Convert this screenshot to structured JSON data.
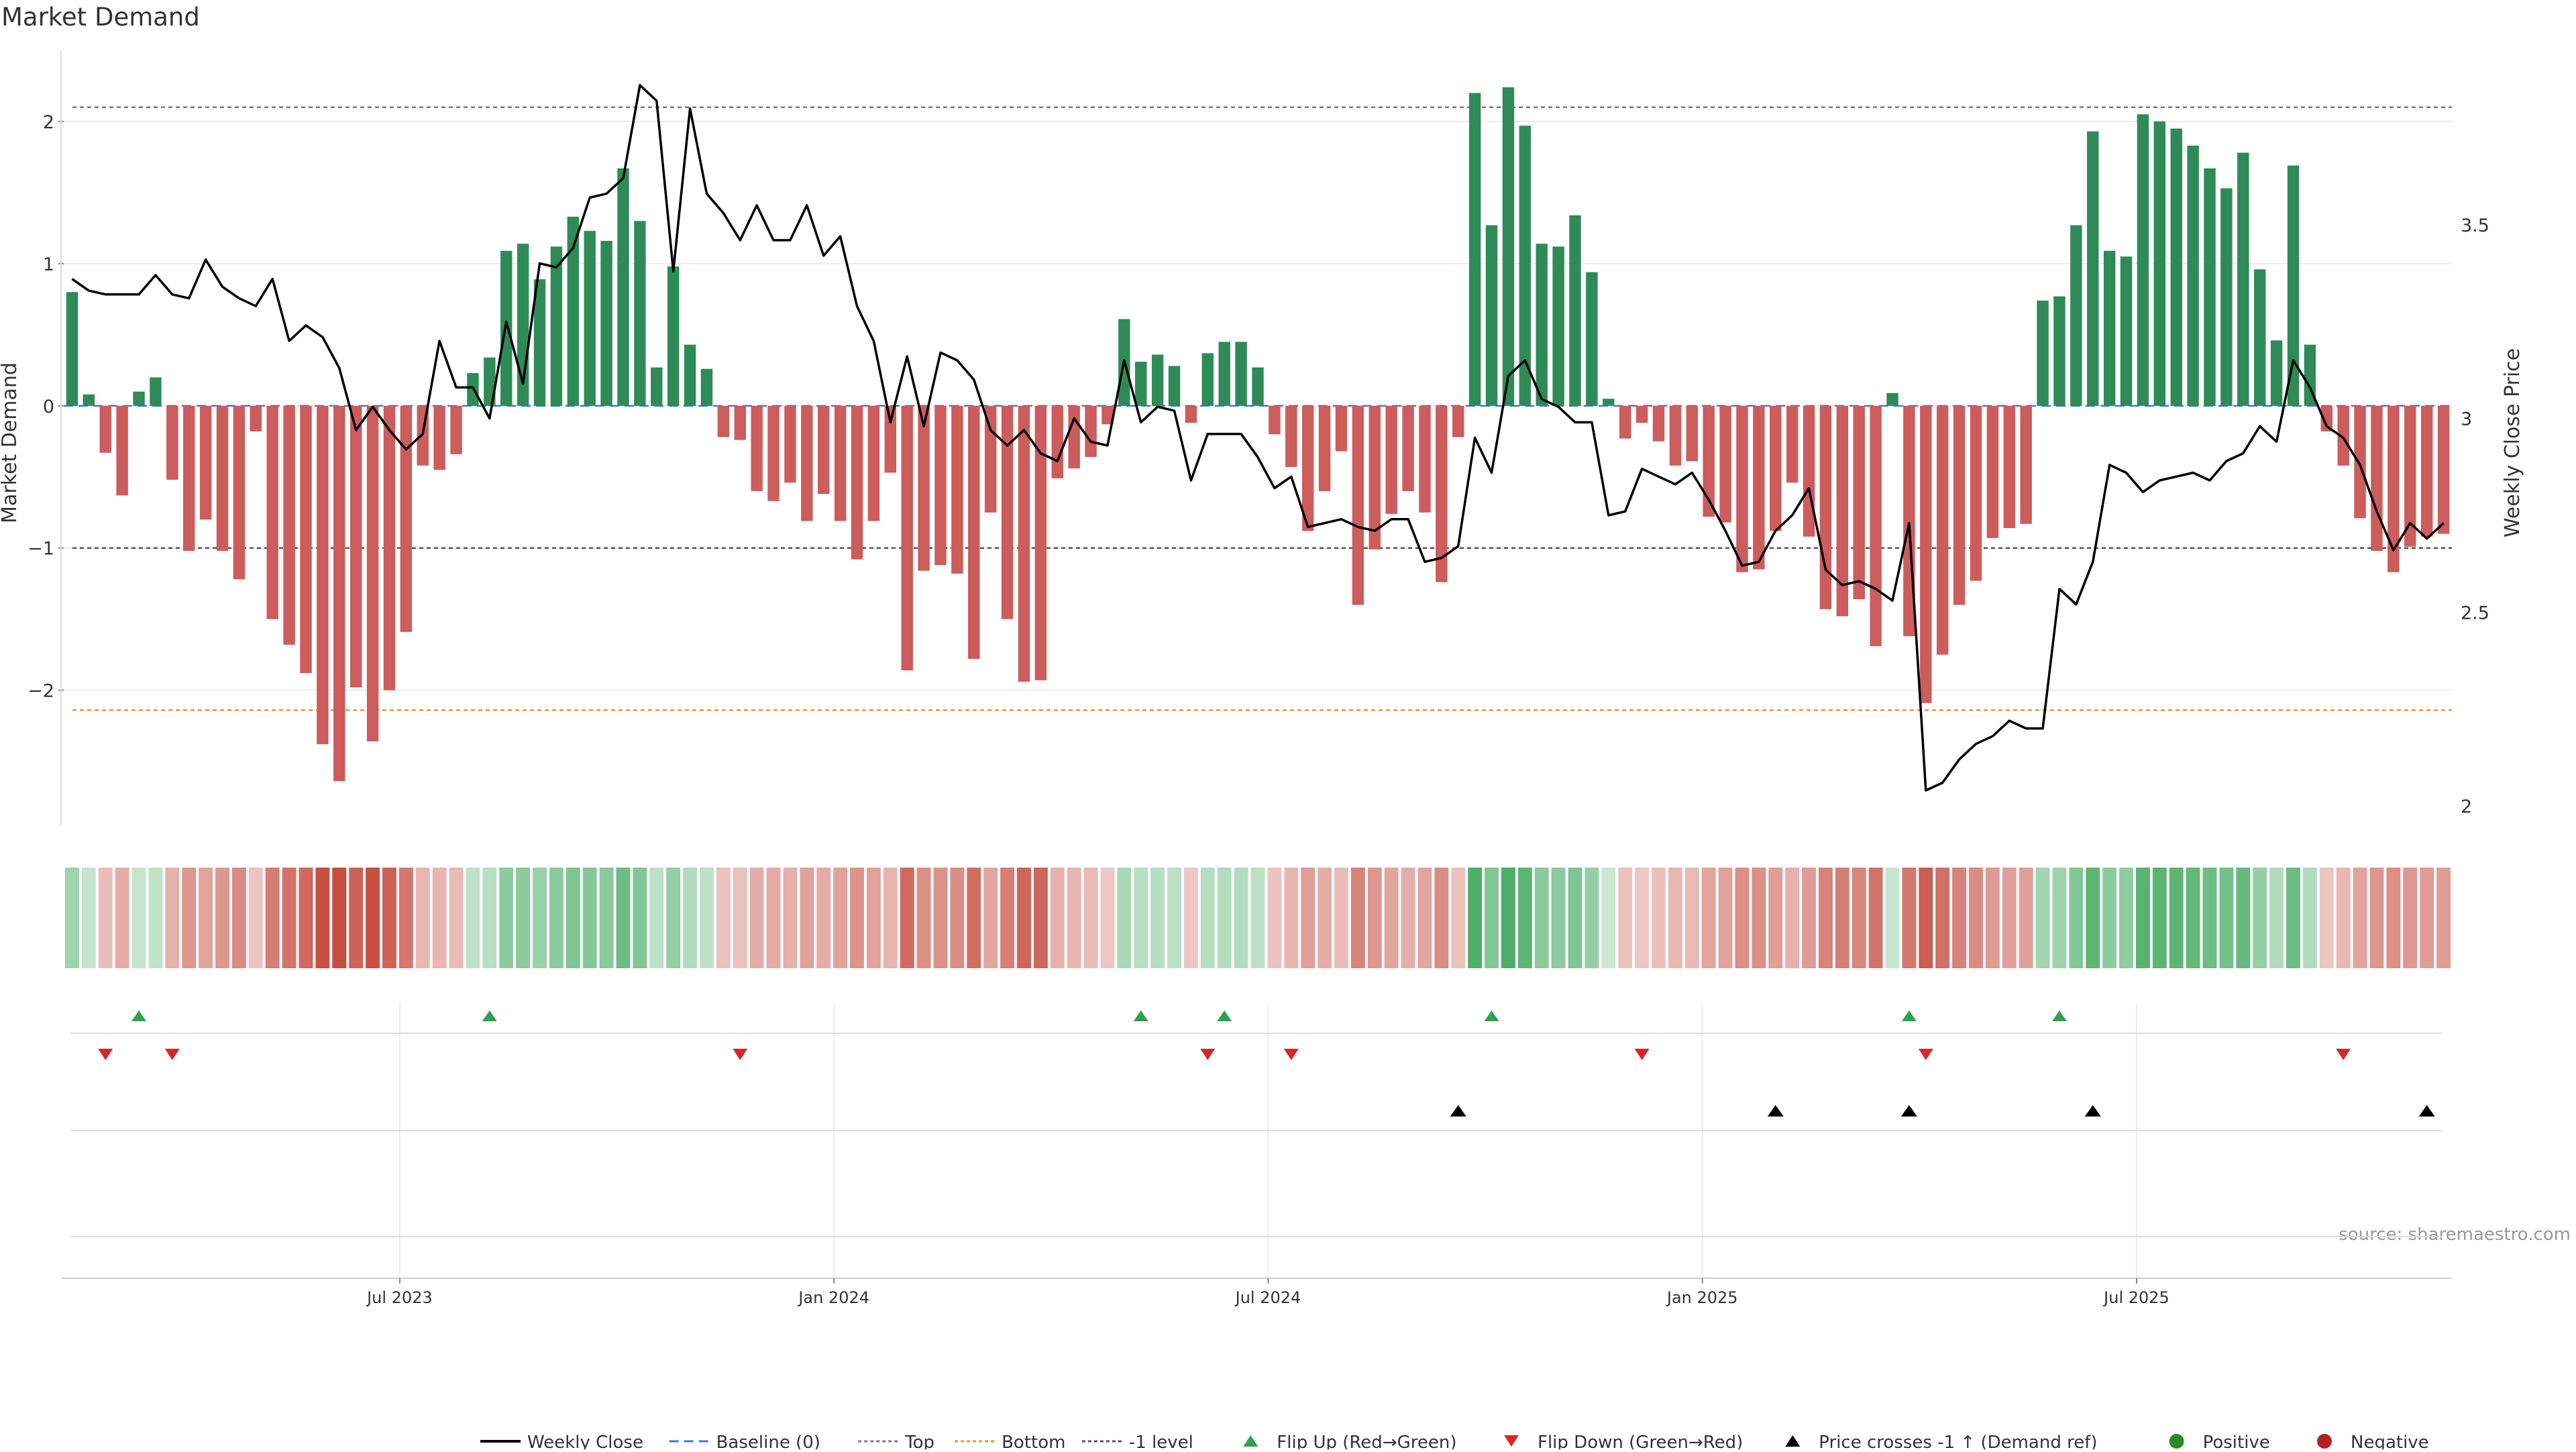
{
  "chart_data": {
    "type": "bar",
    "title": "Market Demand",
    "ylabel": "Market Demand",
    "y2label": "Weekly Close Price",
    "source": "source: sharemaestro.com",
    "ylim": [
      -2.95,
      2.5
    ],
    "y2lim": [
      1.95,
      3.95
    ],
    "yticks": [
      {
        "v": 2,
        "label": "2"
      },
      {
        "v": 1,
        "label": "1"
      },
      {
        "v": 0,
        "label": "0"
      },
      {
        "v": -1,
        "label": "−1"
      },
      {
        "v": -2,
        "label": "−2"
      }
    ],
    "y2ticks": [
      {
        "v": 3.5,
        "label": "3.5"
      },
      {
        "v": 3,
        "label": "3"
      },
      {
        "v": 2.5,
        "label": "2.5"
      },
      {
        "v": 2,
        "label": "2"
      }
    ],
    "xticks": [
      {
        "label": "Jul 2023",
        "week": 20
      },
      {
        "label": "Jan 2024",
        "week": 46
      },
      {
        "label": "Jul 2024",
        "week": 72
      },
      {
        "label": "Jan 2025",
        "week": 98
      },
      {
        "label": "Jul 2025",
        "week": 124
      }
    ],
    "grid": true,
    "legend_position": "bottom",
    "reference_lines": {
      "top": 2.1,
      "bottom": -2.14,
      "minus_one": -1.0,
      "baseline": 0
    },
    "demand": [
      0.8,
      0.08,
      -0.33,
      -0.63,
      0.1,
      0.2,
      -0.52,
      -1.02,
      -0.8,
      -1.02,
      -1.22,
      -0.18,
      -1.5,
      -1.68,
      -1.88,
      -2.38,
      -2.64,
      -1.98,
      -2.36,
      -2.0,
      -1.59,
      -0.42,
      -0.45,
      -0.34,
      0.23,
      0.34,
      1.09,
      1.14,
      0.89,
      1.12,
      1.33,
      1.23,
      1.16,
      1.67,
      1.3,
      0.27,
      0.98,
      0.43,
      0.26,
      -0.22,
      -0.24,
      -0.6,
      -0.67,
      -0.54,
      -0.81,
      -0.62,
      -0.81,
      -1.08,
      -0.81,
      -0.47,
      -1.86,
      -1.16,
      -1.12,
      -1.18,
      -1.78,
      -0.75,
      -1.5,
      -1.94,
      -1.93,
      -0.51,
      -0.44,
      -0.36,
      -0.13,
      0.61,
      0.31,
      0.36,
      0.28,
      -0.12,
      0.37,
      0.45,
      0.45,
      0.27,
      -0.2,
      -0.43,
      -0.88,
      -0.6,
      -0.32,
      -1.4,
      -1.01,
      -0.76,
      -0.6,
      -0.75,
      -1.24,
      -0.22,
      2.2,
      1.27,
      2.24,
      1.97,
      1.14,
      1.12,
      1.34,
      0.94,
      0.05,
      -0.23,
      -0.12,
      -0.25,
      -0.42,
      -0.39,
      -0.78,
      -0.82,
      -1.17,
      -1.15,
      -0.88,
      -0.54,
      -0.92,
      -1.43,
      -1.48,
      -1.36,
      -1.69,
      0.09,
      -1.62,
      -2.09,
      -1.75,
      -1.4,
      -1.23,
      -0.93,
      -0.86,
      -0.83,
      0.74,
      0.77,
      1.27,
      1.93,
      1.09,
      1.05,
      2.05,
      2.0,
      1.95,
      1.83,
      1.67,
      1.53,
      1.78,
      0.96,
      0.46,
      1.69,
      0.43,
      -0.18,
      -0.42,
      -0.79,
      -1.02,
      -1.17,
      -0.99,
      -0.92,
      -0.9
    ],
    "weekly_close": [
      3.36,
      3.33,
      3.32,
      3.32,
      3.32,
      3.37,
      3.32,
      3.31,
      3.41,
      3.34,
      3.31,
      3.29,
      3.36,
      3.2,
      3.24,
      3.21,
      3.13,
      2.97,
      3.03,
      2.97,
      2.92,
      2.96,
      3.2,
      3.08,
      3.08,
      3.0,
      3.25,
      3.09,
      3.4,
      3.39,
      3.44,
      3.57,
      3.58,
      3.62,
      3.86,
      3.82,
      3.38,
      3.8,
      3.58,
      3.53,
      3.46,
      3.55,
      3.46,
      3.46,
      3.55,
      3.42,
      3.47,
      3.29,
      3.2,
      2.99,
      3.16,
      2.98,
      3.17,
      3.15,
      3.1,
      2.97,
      2.93,
      2.97,
      2.91,
      2.89,
      3.0,
      2.94,
      2.93,
      3.15,
      2.99,
      3.03,
      3.02,
      2.84,
      2.96,
      2.96,
      2.96,
      2.9,
      2.82,
      2.85,
      2.72,
      2.73,
      2.74,
      2.72,
      2.71,
      2.74,
      2.74,
      2.63,
      2.64,
      2.67,
      2.95,
      2.86,
      3.11,
      3.15,
      3.05,
      3.03,
      2.99,
      2.99,
      2.75,
      2.76,
      2.87,
      2.85,
      2.83,
      2.86,
      2.79,
      2.71,
      2.62,
      2.63,
      2.71,
      2.75,
      2.82,
      2.61,
      2.57,
      2.58,
      2.56,
      2.53,
      2.73,
      2.04,
      2.06,
      2.12,
      2.16,
      2.18,
      2.22,
      2.2,
      2.2,
      2.56,
      2.52,
      2.63,
      2.88,
      2.86,
      2.81,
      2.84,
      2.85,
      2.86,
      2.84,
      2.89,
      2.91,
      2.98,
      2.94,
      3.15,
      3.08,
      2.98,
      2.95,
      2.88,
      2.76,
      2.66,
      2.73,
      2.69,
      2.73
    ]
  },
  "markers": {
    "flip_up_weeks": [
      4,
      25,
      64,
      69,
      85,
      110,
      119
    ],
    "flip_down_weeks": [
      2,
      6,
      40,
      68,
      73,
      94,
      111,
      136
    ],
    "price_cross_weeks": [
      83,
      102,
      110,
      121,
      141
    ]
  },
  "legend": [
    {
      "key": "weekly-close",
      "label": "Weekly Close",
      "color": "#000000"
    },
    {
      "key": "baseline",
      "label": "Baseline (0)",
      "color": "#4477cc"
    },
    {
      "key": "top",
      "label": "Top",
      "color": "#777799"
    },
    {
      "key": "bottom",
      "label": "Bottom",
      "color": "#e8913a"
    },
    {
      "key": "minus-one",
      "label": "-1 level",
      "color": "#555555"
    },
    {
      "key": "flip-up",
      "label": "Flip Up (Red→Green)",
      "color": "#2ea04f"
    },
    {
      "key": "flip-down",
      "label": "Flip Down (Green→Red)",
      "color": "#d62728"
    },
    {
      "key": "price-cross",
      "label": "Price crosses -1 ↑ (Demand ref)",
      "color": "#000000"
    },
    {
      "key": "positive",
      "label": "Positive",
      "color": "#2a8a2a"
    },
    {
      "key": "negative",
      "label": "Negative",
      "color": "#b22222"
    }
  ],
  "colors": {
    "positive_bar": "#2e8b57",
    "negative_bar": "#cd5c5c",
    "close_line": "#000000",
    "heat_pos_base": "#2ea04f",
    "heat_neg_base": "#c0392b"
  }
}
